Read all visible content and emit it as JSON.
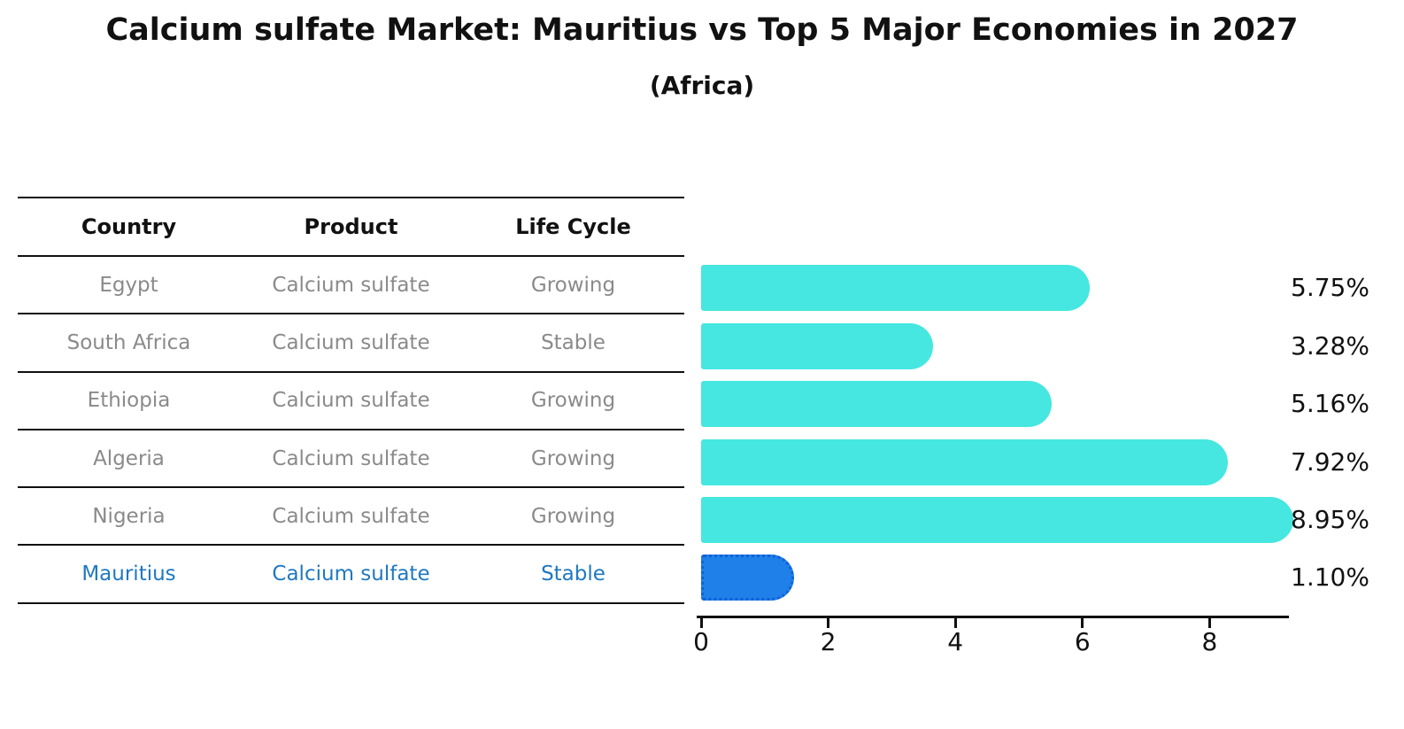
{
  "title": "Calcium sulfate Market: Mauritius vs Top 5 Major Economies in 2027",
  "subtitle": "(Africa)",
  "table": {
    "headers": [
      "Country",
      "Product",
      "Life Cycle"
    ],
    "rows": [
      {
        "country": "Egypt",
        "product": "Calcium sulfate",
        "life_cycle": "Growing",
        "highlight": false
      },
      {
        "country": "South Africa",
        "product": "Calcium sulfate",
        "life_cycle": "Stable",
        "highlight": false
      },
      {
        "country": "Ethiopia",
        "product": "Calcium sulfate",
        "life_cycle": "Growing",
        "highlight": false
      },
      {
        "country": "Algeria",
        "product": "Calcium sulfate",
        "life_cycle": "Growing",
        "highlight": false
      },
      {
        "country": "Nigeria",
        "product": "Calcium sulfate",
        "life_cycle": "Growing",
        "highlight": false
      },
      {
        "country": "Mauritius",
        "product": "Calcium sulfate",
        "life_cycle": "Stable",
        "highlight": true
      }
    ]
  },
  "chart_data": {
    "type": "bar",
    "orientation": "horizontal",
    "title": "Calcium sulfate Market: Mauritius vs Top 5 Major Economies in 2027 (Africa)",
    "categories": [
      "Egypt",
      "South Africa",
      "Ethiopia",
      "Algeria",
      "Nigeria",
      "Mauritius"
    ],
    "values": [
      5.75,
      3.28,
      5.16,
      7.92,
      8.95,
      1.1
    ],
    "value_labels": [
      "5.75%",
      "3.28%",
      "5.16%",
      "7.92%",
      "8.95%",
      "1.10%"
    ],
    "xlabel": "",
    "ylabel": "",
    "xticks": [
      0,
      2,
      4,
      6,
      8
    ],
    "xlim": [
      0,
      9.3
    ],
    "grid": false,
    "legend": false,
    "highlight_index": 5
  },
  "colors": {
    "bar": "#45e7e0",
    "highlight_bar": "#1e80e8",
    "highlight_bar_border": "#1160d8",
    "highlight_text": "#1f78c1",
    "row_text": "#8a8a8a",
    "text": "#111111"
  }
}
